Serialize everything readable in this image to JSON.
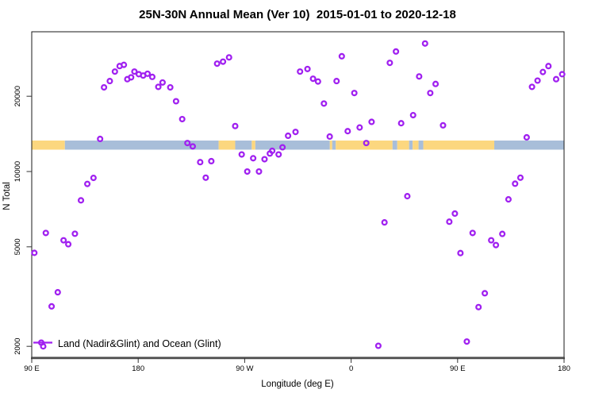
{
  "title": "25N-30N Annual Mean (Ver 10)  2015-01-01 to 2020-12-18",
  "legend": {
    "label": "Land (Nadir&Glint) and Ocean (Glint)"
  },
  "colors": {
    "marker": "#A020F0",
    "land": "#FCD77F",
    "ocean": "#A8BED9",
    "axis": "#1a1a1a",
    "x_axis_line": "#4d4d4d"
  },
  "chart_data": {
    "type": "scatter",
    "title": "25N-30N Annual Mean (Ver 10)  2015-01-01 to 2020-12-18",
    "xlabel": "Longitude (deg E)",
    "ylabel": "N Total",
    "grid": false,
    "legend_position": "bottom-left",
    "x_axis": {
      "min": 90,
      "max": 540,
      "ticks": [
        {
          "value": 90,
          "label": "90 E"
        },
        {
          "value": 180,
          "label": "180"
        },
        {
          "value": 270,
          "label": "90 W"
        },
        {
          "value": 360,
          "label": "0"
        },
        {
          "value": 450,
          "label": "90 E"
        },
        {
          "value": 540,
          "label": "180"
        }
      ]
    },
    "y_axis": {
      "scale": "log10",
      "min": 1808,
      "max": 36210,
      "ticks": [
        {
          "value": 2000,
          "label": "2000"
        },
        {
          "value": 5000,
          "label": "5000"
        },
        {
          "value": 10000,
          "label": "10000"
        },
        {
          "value": 20000,
          "label": "20000"
        }
      ]
    },
    "map_band": {
      "description": "latitude-strip map of 25N-30N: land and ocean segments",
      "value_top": 13300,
      "value_bottom": 12230,
      "segments": [
        {
          "from": 90,
          "to": 118,
          "type": "land"
        },
        {
          "from": 118,
          "to": 248,
          "type": "ocean"
        },
        {
          "from": 248,
          "to": 262,
          "type": "land"
        },
        {
          "from": 262,
          "to": 276,
          "type": "ocean"
        },
        {
          "from": 276,
          "to": 279,
          "type": "land"
        },
        {
          "from": 279,
          "to": 342,
          "type": "ocean"
        },
        {
          "from": 342,
          "to": 344,
          "type": "land"
        },
        {
          "from": 344,
          "to": 347,
          "type": "ocean"
        },
        {
          "from": 347,
          "to": 395,
          "type": "land"
        },
        {
          "from": 395,
          "to": 399,
          "type": "ocean"
        },
        {
          "from": 399,
          "to": 409,
          "type": "land"
        },
        {
          "from": 409,
          "to": 412,
          "type": "ocean"
        },
        {
          "from": 412,
          "to": 417,
          "type": "land"
        },
        {
          "from": 417,
          "to": 421,
          "type": "ocean"
        },
        {
          "from": 421,
          "to": 481,
          "type": "land"
        },
        {
          "from": 481,
          "to": 540,
          "type": "ocean"
        }
      ]
    },
    "series": [
      {
        "name": "Land (Nadir&Glint) and Ocean (Glint)",
        "marker": "open-circle",
        "points": [
          [
            151.1,
            21700
          ],
          [
            156.0,
            23000
          ],
          [
            160.3,
            25100
          ],
          [
            164.3,
            26400
          ],
          [
            167.9,
            26700
          ],
          [
            170.8,
            23400
          ],
          [
            174.0,
            23800
          ],
          [
            176.8,
            25100
          ],
          [
            180.5,
            24500
          ],
          [
            184.2,
            24200
          ],
          [
            187.9,
            24600
          ],
          [
            191.9,
            23900
          ],
          [
            197.0,
            21800
          ],
          [
            200.6,
            22700
          ],
          [
            207.1,
            21700
          ],
          [
            212.0,
            19100
          ],
          [
            217.2,
            16200
          ],
          [
            246.7,
            27000
          ],
          [
            251.7,
            27500
          ],
          [
            256.8,
            28600
          ],
          [
            262.0,
            15200
          ],
          [
            147.8,
            13500
          ],
          [
            221.6,
            13000
          ],
          [
            226.1,
            12600
          ],
          [
            232.4,
            10900
          ],
          [
            241.8,
            11000
          ],
          [
            237.1,
            9450
          ],
          [
            267.5,
            11700
          ],
          [
            277.2,
            11300
          ],
          [
            272.2,
            10000
          ],
          [
            282.1,
            10000
          ],
          [
            286.8,
            11200
          ],
          [
            291.3,
            11800
          ],
          [
            293.3,
            12100
          ],
          [
            298.7,
            11700
          ],
          [
            302.0,
            12500
          ],
          [
            306.7,
            13900
          ],
          [
            313.0,
            14400
          ],
          [
            137.0,
            8920
          ],
          [
            142.2,
            9430
          ],
          [
            422.5,
            32500
          ],
          [
            397.9,
            30200
          ],
          [
            352.1,
            28900
          ],
          [
            392.7,
            27200
          ],
          [
            323.1,
            25700
          ],
          [
            316.8,
            25100
          ],
          [
            327.8,
            23500
          ],
          [
            332.0,
            22900
          ],
          [
            347.7,
            23000
          ],
          [
            417.5,
            24000
          ],
          [
            431.4,
            22400
          ],
          [
            426.9,
            20600
          ],
          [
            362.7,
            20600
          ],
          [
            337.0,
            18700
          ],
          [
            412.4,
            16800
          ],
          [
            402.3,
            15600
          ],
          [
            437.7,
            15300
          ],
          [
            377.3,
            15800
          ],
          [
            367.2,
            15000
          ],
          [
            357.1,
            14500
          ],
          [
            341.9,
            13800
          ],
          [
            508.4,
            13700
          ],
          [
            372.8,
            13000
          ],
          [
            526.8,
            26400
          ],
          [
            522.1,
            25000
          ],
          [
            538.4,
            24500
          ],
          [
            533.3,
            23400
          ],
          [
            517.6,
            23100
          ],
          [
            512.9,
            21800
          ],
          [
            503.1,
            9450
          ],
          [
            498.6,
            8940
          ],
          [
            493.0,
            7740
          ],
          [
            407.5,
            7970
          ],
          [
            131.6,
            7670
          ],
          [
            101.9,
            5680
          ],
          [
            126.5,
            5640
          ],
          [
            116.9,
            5310
          ],
          [
            120.9,
            5120
          ],
          [
            92.2,
            4730
          ],
          [
            112.0,
            3290
          ],
          [
            106.8,
            2890
          ],
          [
            99.7,
            2000
          ],
          [
            388.2,
            6260
          ],
          [
            443.0,
            6300
          ],
          [
            447.7,
            6790
          ],
          [
            462.7,
            5680
          ],
          [
            478.4,
            5310
          ],
          [
            482.4,
            5080
          ],
          [
            487.8,
            5630
          ],
          [
            452.4,
            4720
          ],
          [
            473.0,
            3260
          ],
          [
            467.7,
            2870
          ],
          [
            457.8,
            2090
          ],
          [
            383.0,
            2010
          ]
        ]
      }
    ]
  }
}
